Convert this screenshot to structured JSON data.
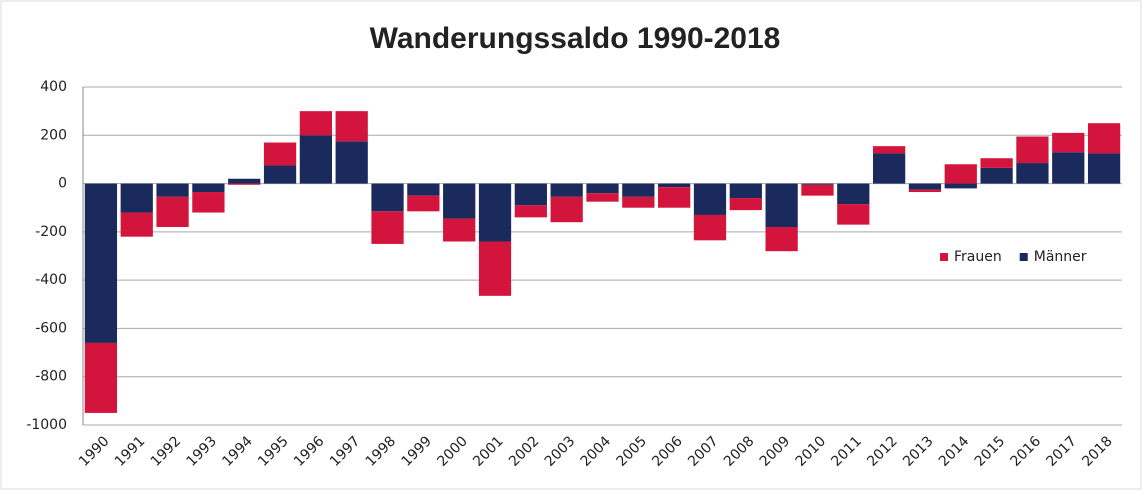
{
  "chart_data": {
    "type": "stacked_bar",
    "title": "Wanderungssaldo 1990-2018",
    "categories": [
      "1990",
      "1991",
      "1992",
      "1993",
      "1994",
      "1995",
      "1996",
      "1997",
      "1998",
      "1999",
      "2000",
      "2001",
      "2002",
      "2003",
      "2004",
      "2005",
      "2006",
      "2007",
      "2008",
      "2009",
      "2010",
      "2011",
      "2012",
      "2013",
      "2014",
      "2015",
      "2016",
      "2017",
      "2018"
    ],
    "series": [
      {
        "name": "Männer",
        "color": "#1b2a5c",
        "values": [
          -660,
          -120,
          -55,
          -35,
          20,
          75,
          200,
          175,
          -115,
          -50,
          -145,
          -240,
          -90,
          -55,
          -40,
          -55,
          -15,
          -130,
          -60,
          -180,
          -5,
          -85,
          125,
          -25,
          -20,
          65,
          85,
          130,
          125
        ]
      },
      {
        "name": "Frauen",
        "color": "#d3143c",
        "values": [
          -290,
          -100,
          -125,
          -85,
          -5,
          95,
          100,
          125,
          -135,
          -65,
          -95,
          -225,
          -50,
          -105,
          -35,
          -45,
          -85,
          -105,
          -50,
          -100,
          -45,
          -85,
          30,
          -10,
          80,
          40,
          110,
          80,
          125
        ]
      }
    ],
    "ylim": [
      -1000,
      400
    ],
    "yticks": [
      -1000,
      -800,
      -600,
      -400,
      -200,
      0,
      200,
      400
    ],
    "grid": true,
    "legend": "right"
  }
}
